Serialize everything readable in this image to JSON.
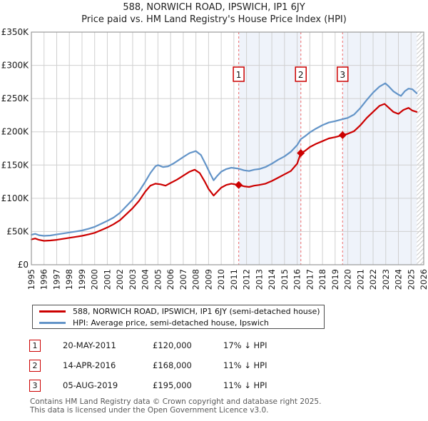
{
  "title": "588, NORWICH ROAD, IPSWICH, IP1 6JY",
  "subtitle": "Price paid vs. HM Land Registry's House Price Index (HPI)",
  "colors": {
    "property_line": "#cc0000",
    "hpi_line": "#6394c8",
    "sale_dashed": "#f08080",
    "shade_band": "#eff3fa",
    "grid": "#d0d0d0",
    "frame": "#9a9a9a",
    "hatch": "#c8c8c8",
    "flag_border": "#cc0000",
    "text": "#1a1a1a",
    "footer_text": "#595959"
  },
  "chart_data": {
    "type": "line",
    "title": "588, NORWICH ROAD, IPSWICH, IP1 6JY — Price paid vs. HPI",
    "x_axis": {
      "min": 1995,
      "max": 2026,
      "ticks": [
        1995,
        1996,
        1997,
        1998,
        1999,
        2000,
        2001,
        2002,
        2003,
        2004,
        2005,
        2006,
        2007,
        2008,
        2009,
        2010,
        2011,
        2012,
        2013,
        2014,
        2015,
        2016,
        2017,
        2018,
        2019,
        2020,
        2021,
        2022,
        2023,
        2024,
        2025,
        2026
      ]
    },
    "y_axis": {
      "min": 0,
      "max": 350,
      "unit": "GBP thousands",
      "tick_values": [
        0,
        50,
        100,
        150,
        200,
        250,
        300,
        350
      ],
      "tick_labels": [
        "£0",
        "£50K",
        "£100K",
        "£150K",
        "£200K",
        "£250K",
        "£300K",
        "£350K"
      ]
    },
    "grid": true,
    "legend_position": "below",
    "series": [
      {
        "name": "588, NORWICH ROAD, IPSWICH, IP1 6JY (semi-detached house)",
        "color": "#cc0000",
        "points": [
          [
            1995.0,
            38
          ],
          [
            1995.3,
            39.5
          ],
          [
            1995.6,
            37.5
          ],
          [
            1996.0,
            36
          ],
          [
            1996.5,
            36.5
          ],
          [
            1997.0,
            37.5
          ],
          [
            1997.5,
            39
          ],
          [
            1998.0,
            40.5
          ],
          [
            1998.5,
            42
          ],
          [
            1999.0,
            43.5
          ],
          [
            1999.5,
            45.5
          ],
          [
            2000.0,
            48
          ],
          [
            2000.5,
            52
          ],
          [
            2001.0,
            56
          ],
          [
            2001.5,
            61
          ],
          [
            2002.0,
            67
          ],
          [
            2002.5,
            76
          ],
          [
            2003.0,
            85
          ],
          [
            2003.5,
            96
          ],
          [
            2004.0,
            110
          ],
          [
            2004.4,
            119
          ],
          [
            2004.8,
            122
          ],
          [
            2005.2,
            121
          ],
          [
            2005.6,
            119
          ],
          [
            2006.0,
            123
          ],
          [
            2006.5,
            128
          ],
          [
            2007.0,
            134
          ],
          [
            2007.5,
            140
          ],
          [
            2007.9,
            143
          ],
          [
            2008.3,
            138
          ],
          [
            2008.7,
            125
          ],
          [
            2009.0,
            114
          ],
          [
            2009.4,
            104
          ],
          [
            2009.7,
            110
          ],
          [
            2010.0,
            116
          ],
          [
            2010.4,
            120
          ],
          [
            2010.8,
            122
          ],
          [
            2011.38,
            120
          ],
          [
            2011.8,
            118
          ],
          [
            2012.2,
            117
          ],
          [
            2012.6,
            119
          ],
          [
            2013.0,
            120
          ],
          [
            2013.5,
            122
          ],
          [
            2014.0,
            126
          ],
          [
            2014.5,
            131
          ],
          [
            2015.0,
            136
          ],
          [
            2015.5,
            141
          ],
          [
            2016.0,
            152
          ],
          [
            2016.29,
            168
          ],
          [
            2016.6,
            171
          ],
          [
            2017.0,
            177
          ],
          [
            2017.5,
            182
          ],
          [
            2018.0,
            186
          ],
          [
            2018.5,
            190
          ],
          [
            2019.0,
            192
          ],
          [
            2019.59,
            195
          ],
          [
            2020.0,
            197
          ],
          [
            2020.5,
            201
          ],
          [
            2021.0,
            210
          ],
          [
            2021.5,
            221
          ],
          [
            2022.0,
            230
          ],
          [
            2022.5,
            239
          ],
          [
            2022.9,
            242
          ],
          [
            2023.2,
            237
          ],
          [
            2023.6,
            230
          ],
          [
            2024.0,
            227
          ],
          [
            2024.4,
            233
          ],
          [
            2024.8,
            236
          ],
          [
            2025.1,
            232
          ],
          [
            2025.45,
            230
          ]
        ]
      },
      {
        "name": "HPI: Average price, semi-detached house, Ipswich",
        "color": "#6394c8",
        "points": [
          [
            1995.0,
            45
          ],
          [
            1995.3,
            46.5
          ],
          [
            1995.6,
            44.5
          ],
          [
            1996.0,
            43.5
          ],
          [
            1996.5,
            44
          ],
          [
            1997.0,
            45.5
          ],
          [
            1997.5,
            47
          ],
          [
            1998.0,
            48.5
          ],
          [
            1998.5,
            50
          ],
          [
            1999.0,
            51.5
          ],
          [
            1999.5,
            54
          ],
          [
            2000.0,
            57
          ],
          [
            2000.5,
            61.5
          ],
          [
            2001.0,
            66
          ],
          [
            2001.5,
            71
          ],
          [
            2002.0,
            78
          ],
          [
            2002.5,
            88
          ],
          [
            2003.0,
            98
          ],
          [
            2003.5,
            110
          ],
          [
            2004.0,
            125
          ],
          [
            2004.4,
            138
          ],
          [
            2004.8,
            148
          ],
          [
            2005.0,
            150
          ],
          [
            2005.4,
            147
          ],
          [
            2005.8,
            148
          ],
          [
            2006.2,
            152
          ],
          [
            2006.6,
            157
          ],
          [
            2007.0,
            162
          ],
          [
            2007.5,
            168
          ],
          [
            2008.0,
            171
          ],
          [
            2008.4,
            165
          ],
          [
            2008.8,
            150
          ],
          [
            2009.1,
            138
          ],
          [
            2009.4,
            127
          ],
          [
            2009.7,
            134
          ],
          [
            2010.0,
            140
          ],
          [
            2010.4,
            144
          ],
          [
            2010.8,
            146
          ],
          [
            2011.38,
            144.5
          ],
          [
            2011.8,
            142
          ],
          [
            2012.2,
            141
          ],
          [
            2012.6,
            143
          ],
          [
            2013.0,
            144
          ],
          [
            2013.5,
            147
          ],
          [
            2014.0,
            152
          ],
          [
            2014.5,
            158
          ],
          [
            2015.0,
            163
          ],
          [
            2015.5,
            170
          ],
          [
            2016.0,
            180
          ],
          [
            2016.29,
            189
          ],
          [
            2016.6,
            193
          ],
          [
            2017.0,
            199
          ],
          [
            2017.5,
            205
          ],
          [
            2018.0,
            210
          ],
          [
            2018.5,
            214
          ],
          [
            2019.0,
            216
          ],
          [
            2019.59,
            219
          ],
          [
            2020.0,
            221
          ],
          [
            2020.5,
            226
          ],
          [
            2021.0,
            236
          ],
          [
            2021.5,
            248
          ],
          [
            2022.0,
            259
          ],
          [
            2022.5,
            268
          ],
          [
            2022.96,
            273
          ],
          [
            2023.2,
            269
          ],
          [
            2023.6,
            261
          ],
          [
            2024.0,
            256
          ],
          [
            2024.2,
            254
          ],
          [
            2024.5,
            261
          ],
          [
            2024.8,
            265
          ],
          [
            2025.1,
            264
          ],
          [
            2025.45,
            258
          ]
        ]
      }
    ],
    "sales": [
      {
        "num": "1",
        "year": 2011.38,
        "price": 120000,
        "price_k": 120,
        "date_label": "20-MAY-2011",
        "price_label": "£120,000",
        "vs_hpi_label": "17% ↓ HPI"
      },
      {
        "num": "2",
        "year": 2016.29,
        "price": 168000,
        "price_k": 168,
        "date_label": "14-APR-2016",
        "price_label": "£168,000",
        "vs_hpi_label": "11% ↓ HPI"
      },
      {
        "num": "3",
        "year": 2019.59,
        "price": 195000,
        "price_k": 195,
        "date_label": "05-AUG-2019",
        "price_label": "£195,000",
        "vs_hpi_label": "11% ↓ HPI"
      }
    ],
    "shaded_bands": [
      [
        2011.38,
        2016.29
      ],
      [
        2019.59,
        2025.45
      ]
    ],
    "hatch_band": [
      2025.45,
      2026
    ]
  },
  "legend": {
    "items": [
      {
        "label": "588, NORWICH ROAD, IPSWICH, IP1 6JY (semi-detached house)",
        "color": "#cc0000"
      },
      {
        "label": "HPI: Average price, semi-detached house, Ipswich",
        "color": "#6394c8"
      }
    ]
  },
  "footer": {
    "line1": "Contains HM Land Registry data © Crown copyright and database right 2025.",
    "line2": "This data is licensed under the Open Government Licence v3.0."
  }
}
